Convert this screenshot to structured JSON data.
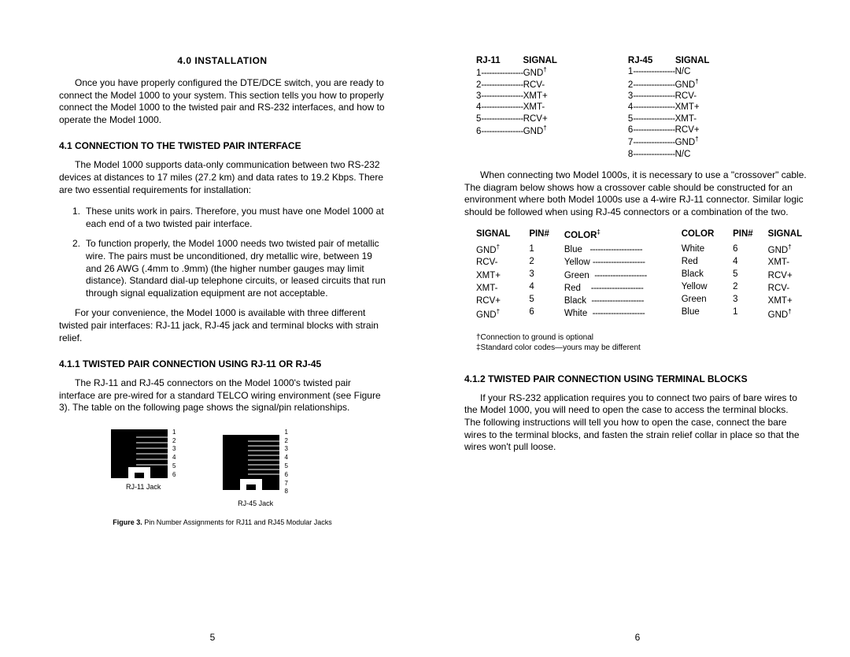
{
  "left": {
    "h_install": "4.0  INSTALLATION",
    "p_intro": "Once you have properly configured the DTE/DCE switch, you are ready to connect the Model 1000 to your system.  This section tells you how to properly connect the Model 1000 to the twisted pair and RS-232 interfaces, and how to operate the Model 1000.",
    "h_41": "4.1 CONNECTION TO THE TWISTED PAIR INTERFACE",
    "p_41": "The Model 1000 supports data-only communication between two RS-232 devices at distances to 17 miles (27.2 km) and data rates to 19.2 Kbps.  There are two essential requirements for installation:",
    "li1": "These units work in pairs.  Therefore, you must have one Model 1000 at each end of a two twisted pair interface.",
    "li2": "To function properly, the Model 1000 needs two twisted pair of metallic wire.  The pairs must be unconditioned, dry metallic wire, between 19 and 26 AWG (.4mm to .9mm) (the higher number gauges may limit distance).  Standard dial-up telephone circuits, or leased circuits that run through signal equalization equipment are not acceptable.",
    "p_41b": "For your convenience, the Model 1000 is available with three different twisted pair interfaces:  RJ-11 jack, RJ-45 jack and terminal blocks with strain relief.",
    "h_411": "4.1.1 TWISTED PAIR CONNECTION USING RJ-11 OR RJ-45",
    "p_411": "The RJ-11 and RJ-45 connectors on the Model 1000's twisted pair interface are pre-wired for a standard TELCO wiring environment (see Figure 3).  The table on the following page shows the signal/pin relationships.",
    "jack_rj11_label": "RJ-11 Jack",
    "jack_rj45_label": "RJ-45 Jack",
    "figcap": "Figure 3.  Pin Number Assignments for RJ11 and RJ45 Modular Jacks",
    "pagenum": "5"
  },
  "right": {
    "pin_rj11_hdr_a": "RJ-11",
    "pin_rj11_hdr_b": "SIGNAL",
    "pin_rj45_hdr_a": "RJ-45",
    "pin_rj45_hdr_b": "SIGNAL",
    "rj11": [
      {
        "pin": "1",
        "sig": "GND",
        "sup": "†"
      },
      {
        "pin": "2",
        "sig": "RCV-",
        "sup": ""
      },
      {
        "pin": "3",
        "sig": "XMT+",
        "sup": ""
      },
      {
        "pin": "4",
        "sig": "XMT-",
        "sup": ""
      },
      {
        "pin": "5",
        "sig": "RCV+",
        "sup": ""
      },
      {
        "pin": "6",
        "sig": "GND",
        "sup": "†"
      }
    ],
    "rj45": [
      {
        "pin": "1",
        "sig": "N/C",
        "sup": ""
      },
      {
        "pin": "2",
        "sig": "GND",
        "sup": "†"
      },
      {
        "pin": "3",
        "sig": "RCV-",
        "sup": ""
      },
      {
        "pin": "4",
        "sig": "XMT+",
        "sup": ""
      },
      {
        "pin": "5",
        "sig": "XMT-",
        "sup": ""
      },
      {
        "pin": "6",
        "sig": "RCV+",
        "sup": ""
      },
      {
        "pin": "7",
        "sig": "GND",
        "sup": "†"
      },
      {
        "pin": "8",
        "sig": "N/C",
        "sup": ""
      }
    ],
    "p_cross": "When connecting two Model 1000s, it is necessary to use a \"crossover\" cable.  The diagram below shows how a crossover cable should be constructed for an environment where both Model 1000s use a 4-wire RJ-11 connector.  Similar logic should be followed when using RJ-45 connectors or a combination of the two.",
    "cross_hdr": {
      "sig1": "SIGNAL",
      "pin1": "PIN#",
      "col1": "COLOR",
      "col1_sup": "‡",
      "col2": "COLOR",
      "pin2": "PIN#",
      "sig2": "SIGNAL"
    },
    "cross": [
      {
        "s1": "GND",
        "s1s": "†",
        "p1": "1",
        "c1": "Blue",
        "c2": "White",
        "p2": "6",
        "s2": "GND",
        "s2s": "†"
      },
      {
        "s1": "RCV-",
        "s1s": "",
        "p1": "2",
        "c1": "Yellow",
        "c2": "Red",
        "p2": "4",
        "s2": "XMT-",
        "s2s": ""
      },
      {
        "s1": "XMT+",
        "s1s": "",
        "p1": "3",
        "c1": "Green",
        "c2": "Black",
        "p2": "5",
        "s2": "RCV+",
        "s2s": ""
      },
      {
        "s1": "XMT-",
        "s1s": "",
        "p1": "4",
        "c1": "Red",
        "c2": "Yellow",
        "p2": "2",
        "s2": "RCV-",
        "s2s": ""
      },
      {
        "s1": "RCV+",
        "s1s": "",
        "p1": "5",
        "c1": "Black",
        "c2": "Green",
        "p2": "3",
        "s2": "XMT+",
        "s2s": ""
      },
      {
        "s1": "GND",
        "s1s": "†",
        "p1": "6",
        "c1": "White",
        "c2": "Blue",
        "p2": "1",
        "s2": "GND",
        "s2s": "†"
      }
    ],
    "fn1": "†Connection to ground is optional",
    "fn2": "‡Standard color codes—yours may be different",
    "h_412": "4.1.2 TWISTED PAIR CONNECTION USING TERMINAL BLOCKS",
    "p_412": "If your RS-232 application requires you to connect two pairs of bare wires to the Model 1000, you will need to open the case to access the terminal blocks.  The following instructions will tell you how to open the case, connect the bare wires to the terminal blocks, and fasten the strain relief collar in place so that the wires won't pull loose.",
    "pagenum": "6"
  }
}
